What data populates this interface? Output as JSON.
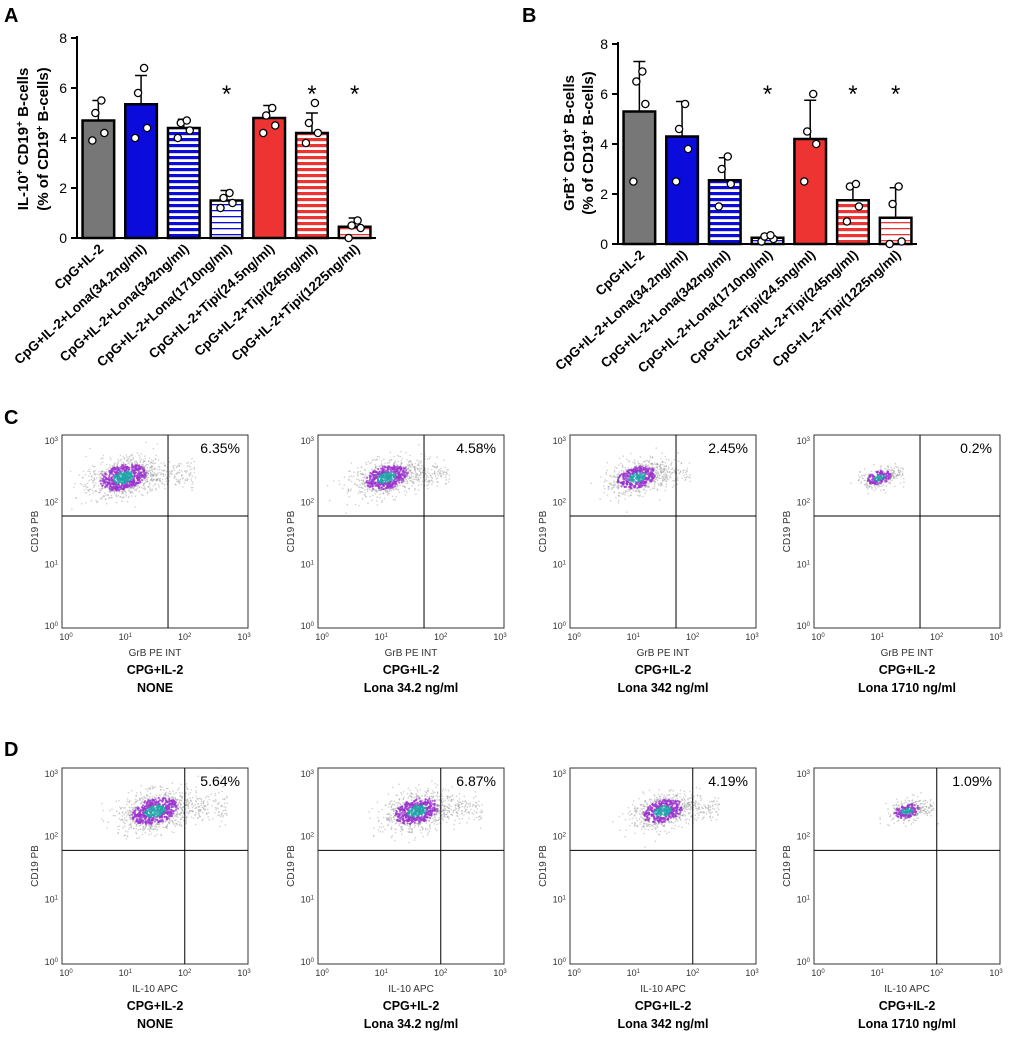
{
  "chart_data": [
    {
      "type": "bar",
      "panel": "A",
      "ylabel_line1": "IL-10",
      "ylabel_sup1": "+",
      "ylabel_mid": " CD19",
      "ylabel_sup2": "+",
      "ylabel_end": " B-cells",
      "ylabel_line2": "(% of CD19",
      "ylabel_line2_sup": "+",
      "ylabel_line2_end": " B-cells)",
      "ylim": [
        0,
        8
      ],
      "yticks": [
        "0",
        "2",
        "4",
        "6",
        "8"
      ],
      "categories": [
        "CpG+IL-2",
        "CpG+IL-2+Lona(34.2ng/ml)",
        "CpG+IL-2+Lona(342ng/ml)",
        "CpG+IL-2+Lona(1710ng/ml)",
        "CpG+IL-2+Tipi(24.5ng/ml)",
        "CpG+IL-2+Tipi(245ng/ml)",
        "CpG+IL-2+Tipi(1225ng/ml)"
      ],
      "values": [
        4.7,
        5.35,
        4.4,
        1.5,
        4.8,
        4.2,
        0.45
      ],
      "errors": [
        0.8,
        1.15,
        0.35,
        0.4,
        0.5,
        0.8,
        0.35
      ],
      "points": [
        [
          3.9,
          4.2,
          5.0,
          5.5
        ],
        [
          4.0,
          4.4,
          5.8,
          6.8
        ],
        [
          4.0,
          4.3,
          4.6,
          4.7
        ],
        [
          1.2,
          1.4,
          1.6,
          1.8
        ],
        [
          4.2,
          4.5,
          4.9,
          5.2
        ],
        [
          3.8,
          4.2,
          4.6,
          5.4
        ],
        [
          0.0,
          0.4,
          0.5,
          0.7
        ]
      ],
      "significance": [
        "",
        "",
        "",
        "*",
        "",
        "*",
        "*"
      ],
      "styles": [
        "gray",
        "blue",
        "blue-stripe",
        "blue-stripe-light",
        "red",
        "red-stripe",
        "red-stripe-light"
      ]
    },
    {
      "type": "bar",
      "panel": "B",
      "ylabel_line1": "GrB",
      "ylabel_sup1": "+",
      "ylabel_mid": " CD19",
      "ylabel_sup2": "+",
      "ylabel_end": " B-cells",
      "ylabel_line2": "(% of CD19",
      "ylabel_line2_sup": "+",
      "ylabel_line2_end": " B-cells)",
      "ylim": [
        0,
        8
      ],
      "yticks": [
        "0",
        "2",
        "4",
        "6",
        "8"
      ],
      "categories": [
        "CpG+IL-2",
        "CpG+IL-2+Lona(34.2ng/ml)",
        "CpG+IL-2+Lona(342ng/ml)",
        "CpG+IL-2+Lona(1710ng/ml)",
        "CpG+IL-2+Tipi(24.5ng/ml)",
        "CpG+IL-2+Tipi(245ng/ml)",
        "CpG+IL-2+Tipi(1225ng/ml)"
      ],
      "values": [
        5.3,
        4.3,
        2.55,
        0.25,
        4.2,
        1.75,
        1.05
      ],
      "errors": [
        2.0,
        1.4,
        0.9,
        0.15,
        1.55,
        0.65,
        1.2
      ],
      "points": [
        [
          2.5,
          5.6,
          6.5,
          6.9
        ],
        [
          2.5,
          3.8,
          4.6,
          5.6
        ],
        [
          1.5,
          2.4,
          3.0,
          3.5
        ],
        [
          0.1,
          0.2,
          0.3,
          0.35
        ],
        [
          2.5,
          4.0,
          4.5,
          6.0
        ],
        [
          0.9,
          1.5,
          2.3,
          2.4
        ],
        [
          0.0,
          0.1,
          1.6,
          2.3
        ]
      ],
      "significance": [
        "",
        "",
        "",
        "*",
        "",
        "*",
        "*"
      ],
      "styles": [
        "gray",
        "blue",
        "blue-stripe",
        "blue-stripe-light",
        "red",
        "red-stripe",
        "red-stripe-light"
      ]
    }
  ],
  "panel_labels": {
    "a": "A",
    "b": "B",
    "c": "C",
    "d": "D"
  },
  "flow": {
    "c": {
      "xlabel": "GrB PE INT",
      "ylabel": "CD19 PB",
      "axis_ticks": [
        "10",
        "10",
        "10",
        "10"
      ],
      "axis_exps": [
        "0",
        "1",
        "2",
        "3"
      ],
      "plots": [
        {
          "percent": "6.35%",
          "caption1": "CPG+IL-2",
          "caption2": "NONE"
        },
        {
          "percent": "4.58%",
          "caption1": "CPG+IL-2",
          "caption2": "Lona 34.2 ng/ml"
        },
        {
          "percent": "2.45%",
          "caption1": "CPG+IL-2",
          "caption2": "Lona 342 ng/ml"
        },
        {
          "percent": "0.2%",
          "caption1": "CPG+IL-2",
          "caption2": "Lona 1710 ng/ml"
        }
      ]
    },
    "d": {
      "xlabel": "IL-10 APC",
      "ylabel": "CD19 PB",
      "axis_ticks": [
        "10",
        "10",
        "10",
        "10"
      ],
      "axis_exps": [
        "0",
        "1",
        "2",
        "3"
      ],
      "plots": [
        {
          "percent": "5.64%",
          "caption1": "CPG+IL-2",
          "caption2": "NONE"
        },
        {
          "percent": "6.87%",
          "caption1": "CPG+IL-2",
          "caption2": "Lona 34.2 ng/ml"
        },
        {
          "percent": "4.19%",
          "caption1": "CPG+IL-2",
          "caption2": "Lona 342 ng/ml"
        },
        {
          "percent": "1.09%",
          "caption1": "CPG+IL-2",
          "caption2": "Lona 1710 ng/ml"
        }
      ]
    }
  },
  "colors": {
    "gray": "#777777",
    "blue": "#0b0bdc",
    "red": "#ee3333",
    "purple": "#9933cc",
    "cyan": "#22a3a8"
  }
}
